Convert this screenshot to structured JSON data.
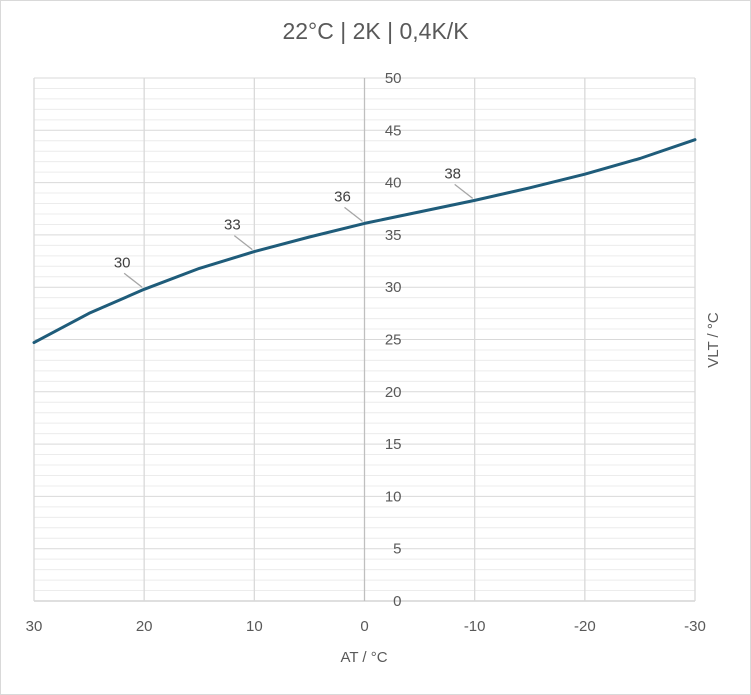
{
  "chart_data": {
    "type": "line",
    "title": "22°C | 2K | 0,4K/K",
    "xlabel": "AT / °C",
    "ylabel": "VLT / °C",
    "xlim": [
      30,
      -30
    ],
    "ylim": [
      0,
      50
    ],
    "x_ticks": [
      30,
      20,
      10,
      0,
      -10,
      -20,
      -30
    ],
    "x_tick_labels": [
      "30",
      "20",
      "10",
      "0",
      "-10",
      "-20",
      "-30"
    ],
    "y_ticks": [
      0,
      5,
      10,
      15,
      20,
      25,
      30,
      35,
      40,
      45,
      50
    ],
    "y_tick_labels": [
      "0",
      "5",
      "10",
      "15",
      "20",
      "25",
      "30",
      "35",
      "40",
      "45",
      "50"
    ],
    "y_minor_step": 1,
    "grid": true,
    "series": [
      {
        "color": "#1f5c7a",
        "x": [
          30,
          25,
          20,
          15,
          10,
          5,
          0,
          -5,
          -10,
          -15,
          -20,
          -25,
          -30
        ],
        "y": [
          24.7,
          27.5,
          29.8,
          31.8,
          33.4,
          34.8,
          36.1,
          37.2,
          38.3,
          39.5,
          40.8,
          42.3,
          44.1
        ]
      }
    ],
    "annotations": [
      {
        "x": 20,
        "y": 29.8,
        "text": "30"
      },
      {
        "x": 10,
        "y": 33.4,
        "text": "33"
      },
      {
        "x": 0,
        "y": 36.1,
        "text": "36"
      },
      {
        "x": -10,
        "y": 38.3,
        "text": "38"
      }
    ]
  }
}
